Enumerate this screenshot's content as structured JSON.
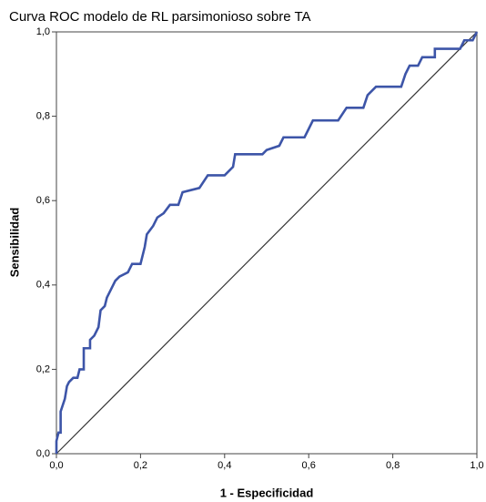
{
  "chart_data": {
    "type": "line",
    "title": "Curva ROC modelo de RL parsimonioso sobre TA",
    "xlabel": "1 - Especificidad",
    "ylabel": "Sensibilidad",
    "x": [
      0,
      0,
      0.005,
      0.01,
      0.01,
      0.02,
      0.025,
      0.03,
      0.04,
      0.05,
      0.055,
      0.065,
      0.065,
      0.08,
      0.08,
      0.09,
      0.1,
      0.105,
      0.115,
      0.12,
      0.13,
      0.14,
      0.15,
      0.17,
      0.18,
      0.2,
      0.21,
      0.215,
      0.23,
      0.24,
      0.255,
      0.27,
      0.29,
      0.3,
      0.34,
      0.36,
      0.4,
      0.42,
      0.425,
      0.49,
      0.5,
      0.53,
      0.54,
      0.59,
      0.6,
      0.61,
      0.67,
      0.69,
      0.73,
      0.74,
      0.76,
      0.82,
      0.83,
      0.84,
      0.86,
      0.87,
      0.9,
      0.9,
      0.96,
      0.97,
      0.99,
      1
    ],
    "values": [
      0,
      0.03,
      0.05,
      0.05,
      0.1,
      0.13,
      0.16,
      0.17,
      0.18,
      0.18,
      0.2,
      0.2,
      0.25,
      0.25,
      0.27,
      0.28,
      0.3,
      0.34,
      0.35,
      0.37,
      0.39,
      0.41,
      0.42,
      0.43,
      0.45,
      0.45,
      0.49,
      0.52,
      0.54,
      0.56,
      0.57,
      0.59,
      0.59,
      0.62,
      0.63,
      0.66,
      0.66,
      0.68,
      0.71,
      0.71,
      0.72,
      0.73,
      0.75,
      0.75,
      0.77,
      0.79,
      0.79,
      0.82,
      0.82,
      0.85,
      0.87,
      0.87,
      0.9,
      0.92,
      0.92,
      0.94,
      0.94,
      0.96,
      0.96,
      0.98,
      0.98,
      1
    ],
    "color": "#3d55a8",
    "diagonal": true,
    "xlim": [
      0,
      1
    ],
    "ylim": [
      0,
      1
    ],
    "xticks": [
      {
        "value": 0,
        "label": "0,0"
      },
      {
        "value": 0.2,
        "label": "0,2"
      },
      {
        "value": 0.4,
        "label": "0,4"
      },
      {
        "value": 0.6,
        "label": "0,6"
      },
      {
        "value": 0.8,
        "label": "0,8"
      },
      {
        "value": 1,
        "label": "1,0"
      }
    ],
    "yticks": [
      {
        "value": 0,
        "label": "0,0"
      },
      {
        "value": 0.2,
        "label": "0,2"
      },
      {
        "value": 0.4,
        "label": "0,4"
      },
      {
        "value": 0.6,
        "label": "0,6"
      },
      {
        "value": 0.8,
        "label": "0,8"
      },
      {
        "value": 1,
        "label": "1,0"
      }
    ]
  }
}
